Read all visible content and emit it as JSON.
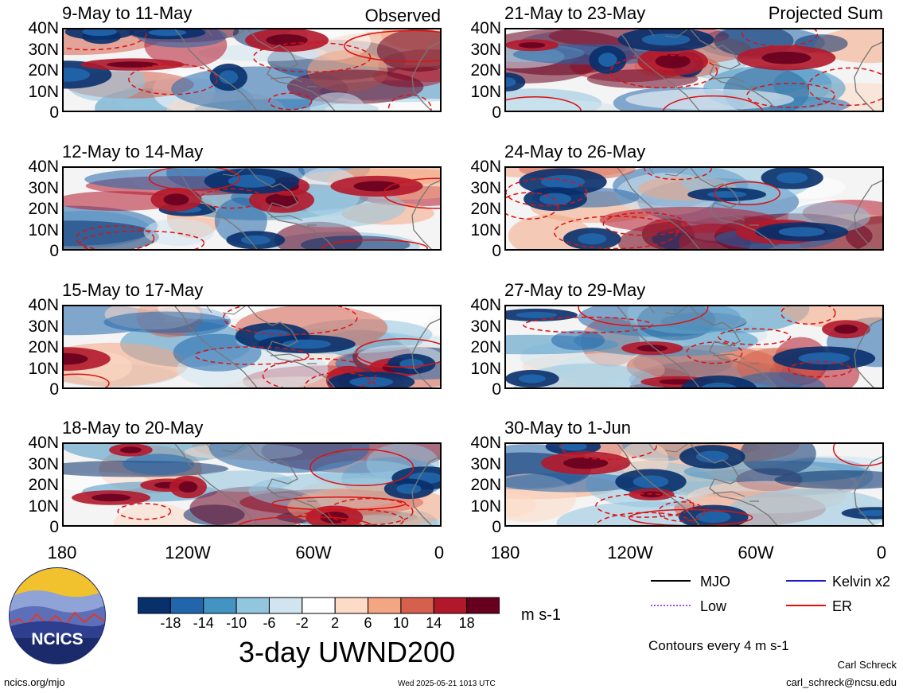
{
  "header": {
    "left_label": "Observed",
    "right_label": "Projected Sum"
  },
  "panels_left": [
    {
      "title": "9-May to 11-May"
    },
    {
      "title": "12-May to 14-May"
    },
    {
      "title": "15-May to 17-May"
    },
    {
      "title": "18-May to 20-May"
    }
  ],
  "panels_right": [
    {
      "title": "21-May to 23-May"
    },
    {
      "title": "24-May to 26-May"
    },
    {
      "title": "27-May to 29-May"
    },
    {
      "title": "30-May to 1-Jun"
    }
  ],
  "axes": {
    "y_ticks": [
      "40N",
      "30N",
      "20N",
      "10N",
      "0"
    ],
    "x_ticks": [
      "180",
      "120W",
      "60W",
      "0"
    ]
  },
  "colorbar": {
    "labels": [
      "-18",
      "-14",
      "-10",
      "-6",
      "-2",
      "2",
      "6",
      "10",
      "14",
      "18"
    ],
    "colors": [
      "#08306b",
      "#2166ac",
      "#4393c3",
      "#92c5de",
      "#d1e5f0",
      "#ffffff",
      "#fddbc7",
      "#f4a582",
      "#d6604d",
      "#b2182b",
      "#67001f"
    ],
    "units": "m s-1",
    "title": "3-day UWND200"
  },
  "legend": {
    "items": [
      {
        "label": "MJO",
        "color": "#000000",
        "style": "solid"
      },
      {
        "label": "Kelvin x2",
        "color": "#1a1acc",
        "style": "solid"
      },
      {
        "label": "Low",
        "color": "#a64dd9",
        "style": "dotted"
      },
      {
        "label": "ER",
        "color": "#dd1111",
        "style": "solid"
      }
    ],
    "note": "Contours every 4 m s-1"
  },
  "logo": {
    "text": "NCICS"
  },
  "footer": {
    "url": "ncics.org/mjo",
    "timestamp": "Wed 2025-05-21 1013 UTC",
    "author": "Carl Schreck",
    "email": "carl_schreck@ncsu.edu"
  }
}
